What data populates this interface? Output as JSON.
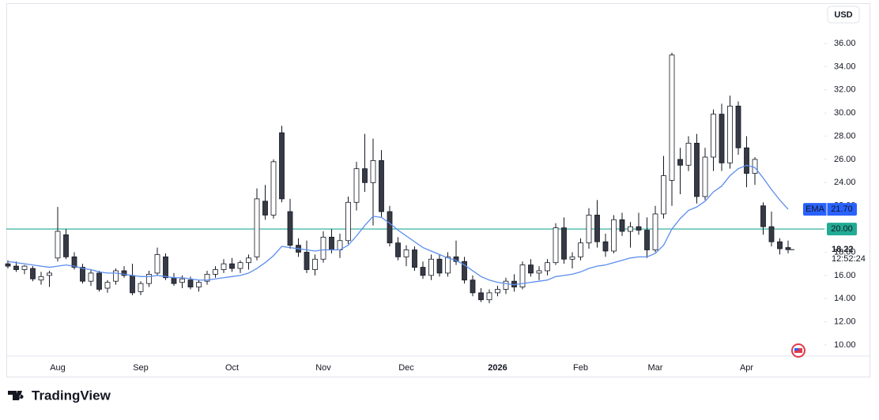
{
  "chart_data": {
    "type": "candlestick",
    "currency": "USD",
    "categories": [
      null,
      null,
      null,
      null,
      null,
      null,
      "Aug",
      null,
      null,
      null,
      null,
      null,
      null,
      null,
      null,
      null,
      "Sep",
      null,
      null,
      null,
      null,
      null,
      null,
      null,
      null,
      null,
      null,
      "Oct",
      null,
      null,
      null,
      null,
      null,
      null,
      null,
      null,
      null,
      null,
      "Nov",
      null,
      null,
      null,
      null,
      null,
      null,
      null,
      null,
      null,
      "Dec",
      null,
      null,
      null,
      null,
      null,
      null,
      null,
      null,
      null,
      null,
      "2026",
      null,
      null,
      null,
      null,
      null,
      null,
      null,
      null,
      null,
      "Feb",
      null,
      null,
      null,
      null,
      null,
      null,
      null,
      null,
      "Mar",
      null,
      null,
      null,
      null,
      null,
      null,
      null,
      null,
      null,
      null,
      "Apr",
      null,
      null,
      null,
      null,
      null
    ],
    "open": [
      17.0,
      16.8,
      16.5,
      16.6,
      15.6,
      16.0,
      17.5,
      19.5,
      17.6,
      16.7,
      15.5,
      16.2,
      14.9,
      15.5,
      16.4,
      16.0,
      14.6,
      15.3,
      16.2,
      17.6,
      15.8,
      15.4,
      15.6,
      15.0,
      15.5,
      16.1,
      16.5,
      17.0,
      16.6,
      17.1,
      17.6,
      22.4,
      21.2,
      28.3,
      21.5,
      18.6,
      18.0,
      16.5,
      17.4,
      19.3,
      18.2,
      19.0,
      22.3,
      25.2,
      24.0,
      25.9,
      21.5,
      18.8,
      17.6,
      18.2,
      16.7,
      16.0,
      17.4,
      16.2,
      17.6,
      17.2,
      15.6,
      14.5,
      13.9,
      14.5,
      14.8,
      15.5,
      15.0,
      16.9,
      16.2,
      16.4,
      17.1,
      20.1,
      17.4,
      17.6,
      18.8,
      21.2,
      18.9,
      18.1,
      20.8,
      19.8,
      20.2,
      19.9,
      18.2,
      21.3,
      24.2,
      26.0,
      25.5,
      27.4,
      22.8,
      26.2,
      29.9,
      25.7,
      30.6,
      27.0,
      24.8,
      22.0,
      20.2,
      18.9,
      18.4
    ],
    "high": [
      17.3,
      17.2,
      16.9,
      16.8,
      16.3,
      16.4,
      21.9,
      20.0,
      18.0,
      17.0,
      16.5,
      16.4,
      15.6,
      16.6,
      16.8,
      17.0,
      15.5,
      16.4,
      18.4,
      17.9,
      16.2,
      16.0,
      15.9,
      15.6,
      16.4,
      16.8,
      17.4,
      17.5,
      17.3,
      17.8,
      23.5,
      23.8,
      26.0,
      28.9,
      22.6,
      19.2,
      19.0,
      17.8,
      19.8,
      20.0,
      19.6,
      22.8,
      25.8,
      28.2,
      27.8,
      26.8,
      22.0,
      19.3,
      18.6,
      18.5,
      17.2,
      17.8,
      17.8,
      18.0,
      19.0,
      17.6,
      16.0,
      14.9,
      14.8,
      15.1,
      15.8,
      16.1,
      17.2,
      17.4,
      16.8,
      17.4,
      20.5,
      21.0,
      18.0,
      19.2,
      21.8,
      22.5,
      19.6,
      21.2,
      21.4,
      20.6,
      21.4,
      21.0,
      22.0,
      26.3,
      35.2,
      27.0,
      28.0,
      28.2,
      27.0,
      30.3,
      30.8,
      31.5,
      31.0,
      28.0,
      26.2,
      22.3,
      21.5,
      19.2,
      19.0
    ],
    "low": [
      16.6,
      16.3,
      16.1,
      15.5,
      15.2,
      15.0,
      17.2,
      17.4,
      16.5,
      15.3,
      15.1,
      14.6,
      14.5,
      15.2,
      15.8,
      14.3,
      14.3,
      15.0,
      16.0,
      15.6,
      15.1,
      14.9,
      14.8,
      14.6,
      15.2,
      15.8,
      16.2,
      16.3,
      16.2,
      16.5,
      17.3,
      20.8,
      20.9,
      22.3,
      18.3,
      17.6,
      16.2,
      16.0,
      17.1,
      17.9,
      17.5,
      18.7,
      21.6,
      23.2,
      20.3,
      21.0,
      18.5,
      17.3,
      16.8,
      16.4,
      15.7,
      15.6,
      15.9,
      15.9,
      16.9,
      15.3,
      14.2,
      13.7,
      13.6,
      14.2,
      14.4,
      14.6,
      14.8,
      15.9,
      15.6,
      16.0,
      16.9,
      17.0,
      16.6,
      17.3,
      18.3,
      18.4,
      17.6,
      17.9,
      19.4,
      18.4,
      19.5,
      17.5,
      18.0,
      20.9,
      22.0,
      23.0,
      25.0,
      22.2,
      22.5,
      25.0,
      25.0,
      25.2,
      26.4,
      23.6,
      23.8,
      19.5,
      18.5,
      17.8,
      17.9
    ],
    "close": [
      16.8,
      16.5,
      16.8,
      15.7,
      15.9,
      16.2,
      19.8,
      17.6,
      16.7,
      15.5,
      16.2,
      14.8,
      15.4,
      16.4,
      16.0,
      14.5,
      15.3,
      16.1,
      17.8,
      15.8,
      15.3,
      15.7,
      15.0,
      15.4,
      16.1,
      16.5,
      17.0,
      16.6,
      17.1,
      17.5,
      22.6,
      21.2,
      25.8,
      22.6,
      18.6,
      18.0,
      16.5,
      17.4,
      19.3,
      18.2,
      19.0,
      22.3,
      25.2,
      24.0,
      25.9,
      21.5,
      18.8,
      17.6,
      18.2,
      16.7,
      16.0,
      17.4,
      16.2,
      17.6,
      17.2,
      15.6,
      14.5,
      13.9,
      14.5,
      14.8,
      15.5,
      15.0,
      16.9,
      16.2,
      16.4,
      17.1,
      20.1,
      17.4,
      17.6,
      18.8,
      21.2,
      18.9,
      18.1,
      20.8,
      19.8,
      20.2,
      19.9,
      18.2,
      21.3,
      24.6,
      35.0,
      25.5,
      27.4,
      22.8,
      26.2,
      29.9,
      25.7,
      30.6,
      27.0,
      24.8,
      26.0,
      20.2,
      18.9,
      18.3,
      18.22
    ],
    "up_color": "#ffffff",
    "down_color": "#363a45",
    "outline_color": "#131722",
    "ema": {
      "name": "EMA",
      "color": "#5b8def",
      "values": [
        17.2,
        17.1,
        17.0,
        16.9,
        16.8,
        16.7,
        16.8,
        16.9,
        16.8,
        16.6,
        16.5,
        16.3,
        16.2,
        16.2,
        16.1,
        16.0,
        15.9,
        15.9,
        16.0,
        15.9,
        15.8,
        15.8,
        15.7,
        15.6,
        15.6,
        15.7,
        15.8,
        15.9,
        16.0,
        16.2,
        16.6,
        17.1,
        17.7,
        18.5,
        18.4,
        18.3,
        18.2,
        18.1,
        18.2,
        18.2,
        18.2,
        18.6,
        19.4,
        20.3,
        21.1,
        21.0,
        20.5,
        19.9,
        19.4,
        18.9,
        18.4,
        18.1,
        17.8,
        17.5,
        17.3,
        16.9,
        16.4,
        15.9,
        15.6,
        15.4,
        15.3,
        15.2,
        15.3,
        15.4,
        15.5,
        15.6,
        15.9,
        16.0,
        16.1,
        16.3,
        16.6,
        16.8,
        16.9,
        17.1,
        17.3,
        17.5,
        17.6,
        17.6,
        17.9,
        18.6,
        20.0,
        20.9,
        21.6,
        21.9,
        22.4,
        23.2,
        23.7,
        24.6,
        25.2,
        25.5,
        25.3,
        24.4,
        23.4,
        22.5,
        21.7
      ],
      "last_label": "21.70",
      "label_color": "#2962ff"
    },
    "hline": {
      "value": 20,
      "label": "20.00",
      "color": "#22ab94"
    },
    "last_price": 18.22,
    "countdown": "12:52:24",
    "ylim": [
      8.8,
      37.6
    ],
    "yticks": [
      {
        "value": 10,
        "label": "10.00"
      },
      {
        "value": 12,
        "label": "12.00"
      },
      {
        "value": 14,
        "label": "14.00"
      },
      {
        "value": 16,
        "label": "16.00"
      },
      {
        "value": 18,
        "label": "18.00"
      },
      {
        "value": 20,
        "label": "20.00"
      },
      {
        "value": 22,
        "label": "22.00"
      },
      {
        "value": 24,
        "label": "24.00"
      },
      {
        "value": 26,
        "label": "26.00"
      },
      {
        "value": 28,
        "label": "28.00"
      },
      {
        "value": 30,
        "label": "30.00"
      },
      {
        "value": 32,
        "label": "32.00"
      },
      {
        "value": 34,
        "label": "34.00"
      },
      {
        "value": 36,
        "label": "36.00"
      }
    ],
    "brand": "TradingView"
  }
}
